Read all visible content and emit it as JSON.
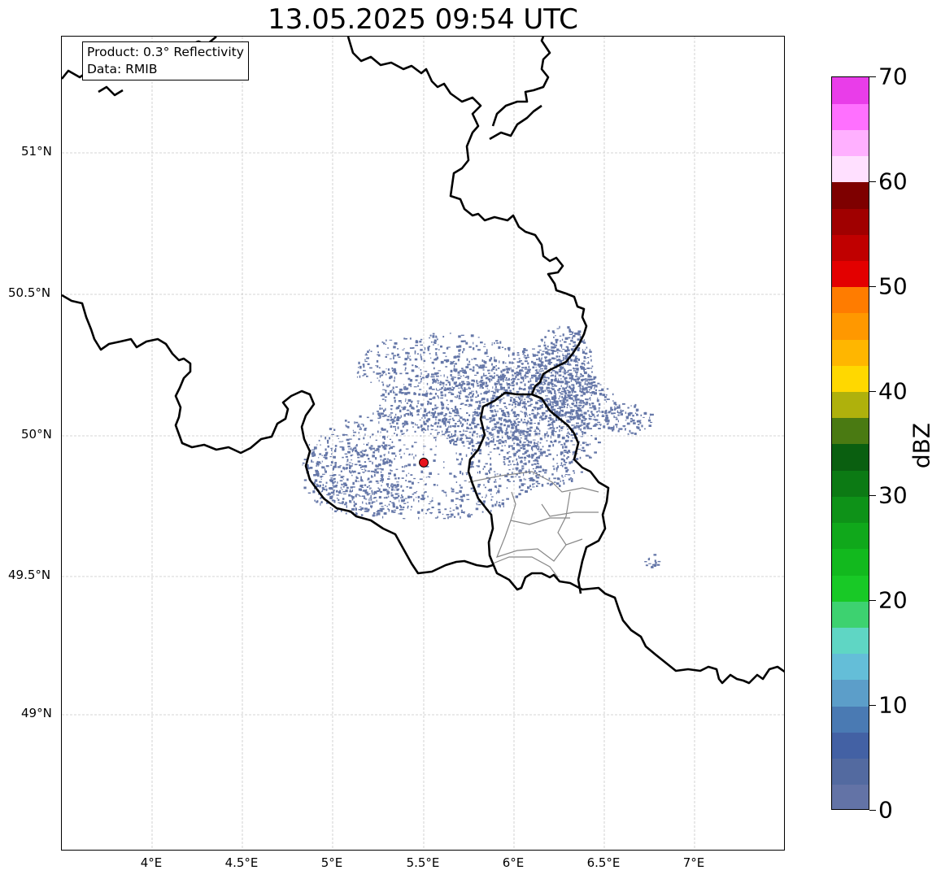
{
  "map": {
    "title": "13.05.2025 09:54 UTC",
    "info_box": {
      "line1": "Product: 0.3° Reflectivity",
      "line2": "Data: RMIB"
    },
    "x_ticks": [
      "4°E",
      "4.5°E",
      "5°E",
      "5.5°E",
      "6°E",
      "6.5°E",
      "7°E"
    ],
    "y_ticks": [
      "51°N",
      "50.5°N",
      "50°N",
      "49.5°N",
      "49°N"
    ],
    "extent": {
      "lon": [
        3.5,
        7.5
      ],
      "lat": [
        48.55,
        51.4
      ]
    },
    "radar_site": {
      "lon": 5.5,
      "lat": 49.91,
      "color": "#e8141b"
    },
    "echo_color": "#6577a8",
    "border_color": "#000000",
    "region_border_color": "#888888"
  },
  "colorbar": {
    "unit": "dBZ",
    "min": 0,
    "max": 70,
    "tick_labels": [
      "0",
      "10",
      "20",
      "30",
      "40",
      "50",
      "60",
      "70"
    ],
    "colors": [
      "#6373a6",
      "#536aa0",
      "#4361a4",
      "#4a7ab3",
      "#5c9ec9",
      "#64bed8",
      "#5fd6c4",
      "#3dd270",
      "#18c926",
      "#12b91e",
      "#10a81b",
      "#0e9218",
      "#0c7a14",
      "#0a5f10",
      "#4a7a12",
      "#afb10c",
      "#ffd800",
      "#ffb600",
      "#ff9800",
      "#ff7c00",
      "#e30000",
      "#c00000",
      "#a00000",
      "#7e0000",
      "#ffe0ff",
      "#ffb0ff",
      "#ff70ff",
      "#e93de9"
    ]
  }
}
